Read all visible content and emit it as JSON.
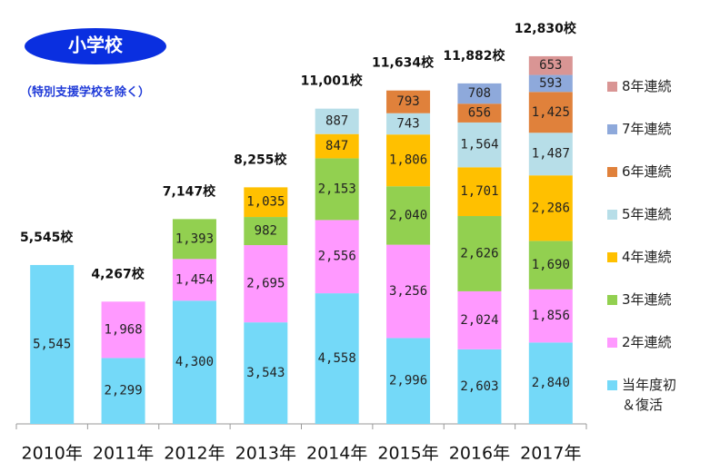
{
  "chart_data": {
    "type": "stacked_bar",
    "title": "小学校",
    "subtitle": "（特別支援学校を除く）",
    "categories": [
      "2010年",
      "2011年",
      "2012年",
      "2013年",
      "2014年",
      "2015年",
      "2016年",
      "2017年"
    ],
    "ylim": [
      0,
      14000
    ],
    "totals": [
      5545,
      4267,
      7147,
      8255,
      11001,
      11634,
      11882,
      12830
    ],
    "total_labels": [
      "5,545校",
      "4,267校",
      "7,147校",
      "8,255校",
      "11,001校",
      "11,634校",
      "11,882校",
      "12,830校"
    ],
    "series": [
      {
        "name": "当年度初＆復活",
        "color": "#74d9f8",
        "values": [
          5545,
          2299,
          4300,
          3543,
          4558,
          2996,
          2603,
          2840
        ],
        "value_labels": [
          "5,545",
          "2,299",
          "4,300",
          "3,543",
          "4,558",
          "2,996",
          "2,603",
          "2,840"
        ]
      },
      {
        "name": "2年連続",
        "color": "#ff99ff",
        "values": [
          null,
          1968,
          1454,
          2695,
          2556,
          3256,
          2024,
          1856
        ],
        "value_labels": [
          null,
          "1,968",
          "1,454",
          "2,695",
          "2,556",
          "3,256",
          "2,024",
          "1,856"
        ]
      },
      {
        "name": "3年連続",
        "color": "#92d050",
        "values": [
          null,
          null,
          1393,
          982,
          2153,
          2040,
          2626,
          1690
        ],
        "value_labels": [
          null,
          null,
          "1,393",
          "982",
          "2,153",
          "2,040",
          "2,626",
          "1,690"
        ]
      },
      {
        "name": "4年連続",
        "color": "#ffc000",
        "values": [
          null,
          null,
          null,
          1035,
          847,
          1806,
          1701,
          2286
        ],
        "value_labels": [
          null,
          null,
          null,
          "1,035",
          "847",
          "1,806",
          "1,701",
          "2,286"
        ]
      },
      {
        "name": "5年連続",
        "color": "#b7dee8",
        "values": [
          null,
          null,
          null,
          null,
          887,
          743,
          1564,
          1487
        ],
        "value_labels": [
          null,
          null,
          null,
          null,
          "887",
          "743",
          "1,564",
          "1,487"
        ]
      },
      {
        "name": "6年連続",
        "color": "#e0813b",
        "values": [
          null,
          null,
          null,
          null,
          null,
          793,
          656,
          1425
        ],
        "value_labels": [
          null,
          null,
          null,
          null,
          null,
          "793",
          "656",
          "1,425"
        ]
      },
      {
        "name": "7年連続",
        "color": "#8ea9db",
        "values": [
          null,
          null,
          null,
          null,
          null,
          null,
          708,
          593
        ],
        "value_labels": [
          null,
          null,
          null,
          null,
          null,
          null,
          "708",
          "593"
        ]
      },
      {
        "name": "8年連続",
        "color": "#d99594",
        "values": [
          null,
          null,
          null,
          null,
          null,
          null,
          null,
          653
        ],
        "value_labels": [
          null,
          null,
          null,
          null,
          null,
          null,
          null,
          "653"
        ]
      }
    ]
  }
}
